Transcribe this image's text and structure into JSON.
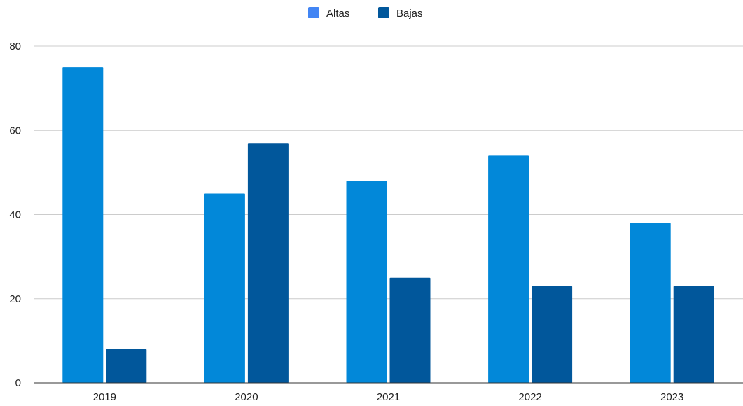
{
  "chart_data": {
    "type": "bar",
    "categories": [
      "2019",
      "2020",
      "2021",
      "2022",
      "2023"
    ],
    "series": [
      {
        "name": "Altas",
        "values": [
          75,
          45,
          48,
          54,
          38
        ],
        "color": "#0288D9",
        "legend_color": "#4285F4"
      },
      {
        "name": "Bajas",
        "values": [
          8,
          57,
          25,
          23,
          23
        ],
        "color": "#01579B",
        "legend_color": "#01579B"
      }
    ],
    "ylim": [
      0,
      80
    ],
    "yticks": [
      "0",
      "20",
      "40",
      "60",
      "80"
    ],
    "title": "",
    "xlabel": "",
    "ylabel": "",
    "grid": true,
    "legend_position": "top-center"
  }
}
